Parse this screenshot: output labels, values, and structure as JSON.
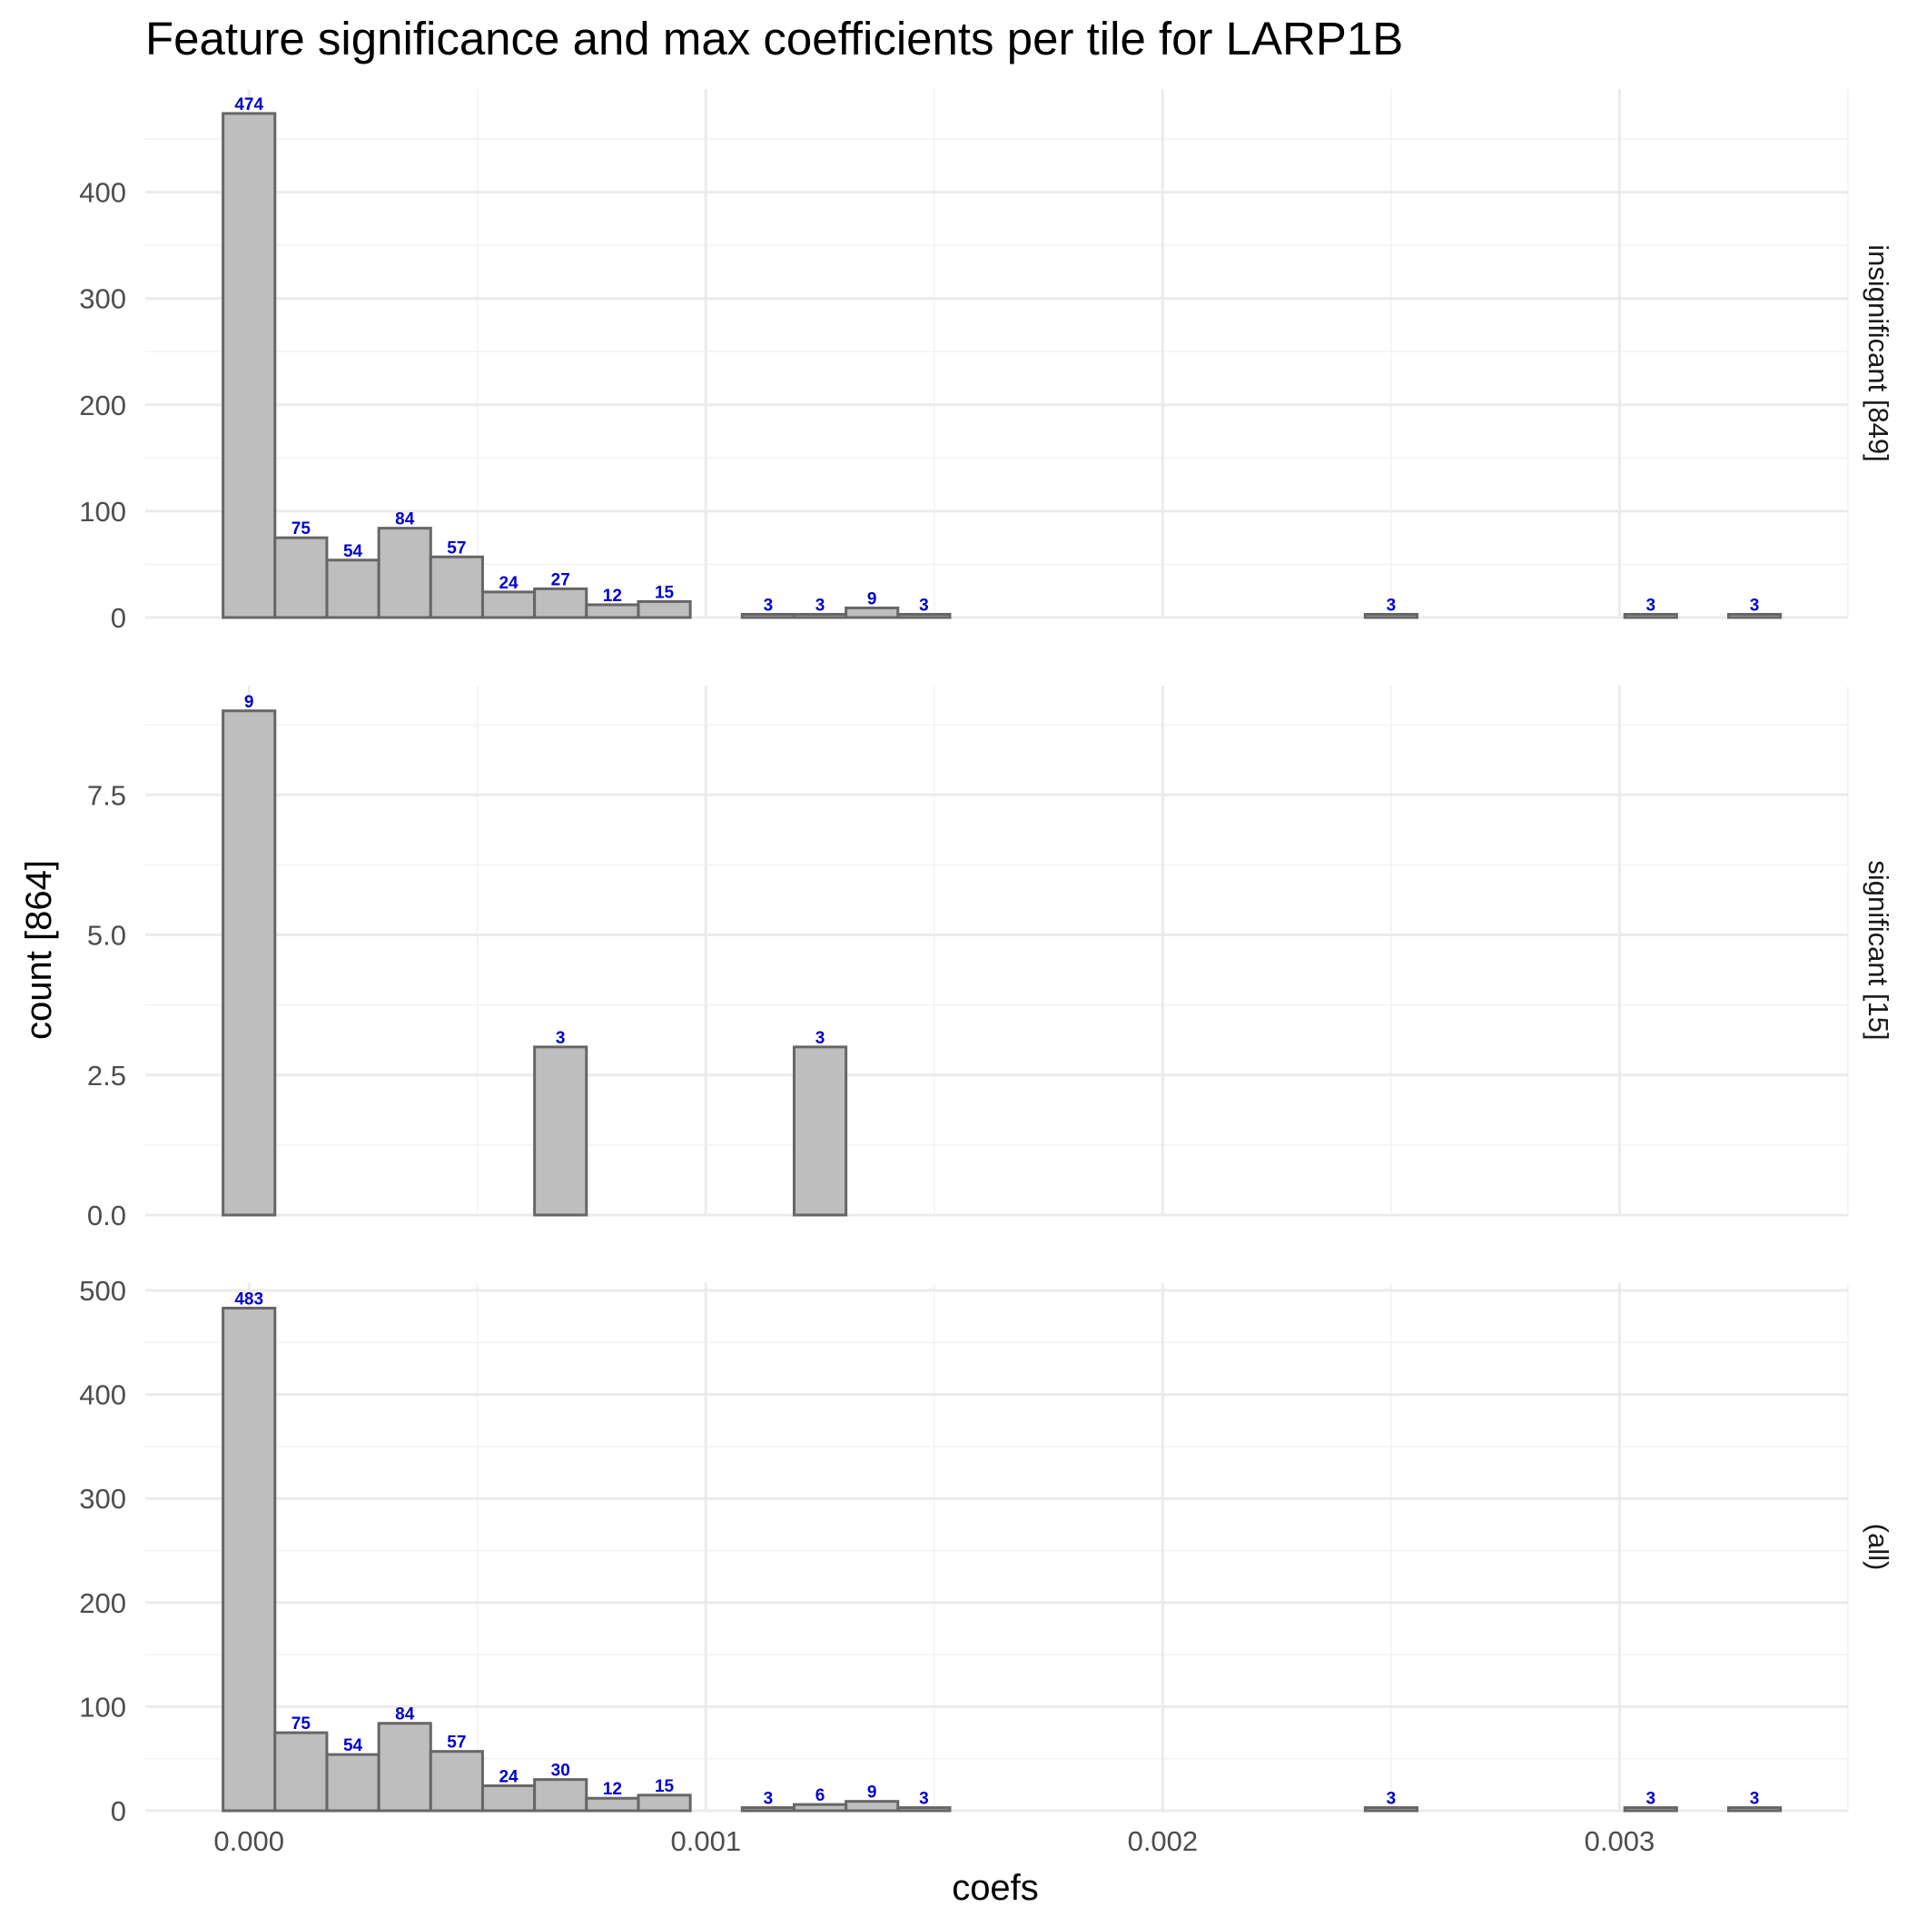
{
  "chart_data": {
    "type": "bar",
    "title": "Feature significance and max coefficients per tile for LARP1B",
    "xlabel": "coefs",
    "ylabel": "count [864]",
    "xlim": [
      -0.000227,
      0.0035
    ],
    "x_ticks": [
      {
        "value": 0.0,
        "label": "0.000"
      },
      {
        "value": 0.001,
        "label": "0.001"
      },
      {
        "value": 0.002,
        "label": "0.002"
      },
      {
        "value": 0.003,
        "label": "0.003"
      }
    ],
    "bin_width": 0.0001136,
    "bin_starts": [
      -5.68e-05,
      5.68e-05,
      0.0001705,
      0.0002841,
      0.0003977,
      0.0005114,
      0.000625,
      0.0007386,
      0.0008523,
      0.0009659,
      0.0010795,
      0.0011932,
      0.0013068,
      0.0014205,
      0.0015341,
      0.0016477,
      0.0017614,
      0.001875,
      0.0019886,
      0.0021023,
      0.0022159,
      0.0023295,
      0.0024432,
      0.0025568,
      0.0026705,
      0.0027841,
      0.0028977,
      0.0030114,
      0.003125,
      0.0032386
    ],
    "grid": true,
    "panels": [
      {
        "strip_label": "insignificant [849]",
        "ylim": [
          0,
          497
        ],
        "y_ticks": [
          {
            "value": 0,
            "label": "0"
          },
          {
            "value": 100,
            "label": "100"
          },
          {
            "value": 200,
            "label": "200"
          },
          {
            "value": 300,
            "label": "300"
          },
          {
            "value": 400,
            "label": "400"
          }
        ],
        "counts": [
          474,
          75,
          54,
          84,
          57,
          24,
          27,
          12,
          15,
          0,
          3,
          3,
          9,
          3,
          0,
          0,
          0,
          0,
          0,
          0,
          0,
          0,
          3,
          0,
          0,
          0,
          0,
          3,
          0,
          3
        ]
      },
      {
        "strip_label": "significant [15]",
        "ylim": [
          0,
          9.45
        ],
        "y_ticks": [
          {
            "value": 0,
            "label": "0.0"
          },
          {
            "value": 2.5,
            "label": "2.5"
          },
          {
            "value": 5,
            "label": "5.0"
          },
          {
            "value": 7.5,
            "label": "7.5"
          }
        ],
        "counts": [
          9,
          0,
          0,
          0,
          0,
          0,
          3,
          0,
          0,
          0,
          0,
          3,
          0,
          0,
          0,
          0,
          0,
          0,
          0,
          0,
          0,
          0,
          0,
          0,
          0,
          0,
          0,
          0,
          0,
          0
        ]
      },
      {
        "strip_label": "(all)",
        "ylim": [
          0,
          507
        ],
        "y_ticks": [
          {
            "value": 0,
            "label": "0"
          },
          {
            "value": 100,
            "label": "100"
          },
          {
            "value": 200,
            "label": "200"
          },
          {
            "value": 300,
            "label": "300"
          },
          {
            "value": 400,
            "label": "400"
          },
          {
            "value": 500,
            "label": "500"
          }
        ],
        "counts": [
          483,
          75,
          54,
          84,
          57,
          24,
          30,
          12,
          15,
          0,
          3,
          6,
          9,
          3,
          0,
          0,
          0,
          0,
          0,
          0,
          0,
          0,
          3,
          0,
          0,
          0,
          0,
          3,
          0,
          3
        ]
      }
    ],
    "colors": {
      "bar_fill": "#bebebe",
      "bar_stroke": "#666666",
      "label": "#0000cc",
      "grid_major": "#ebebeb",
      "grid_minor": "#f2f2f2"
    }
  }
}
